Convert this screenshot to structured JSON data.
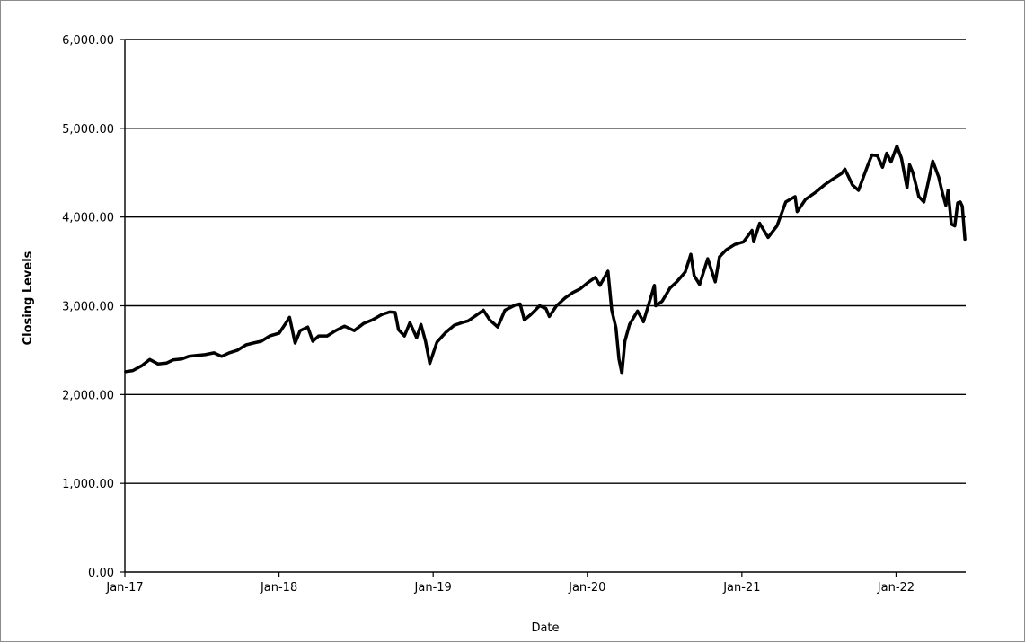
{
  "chart_data": {
    "type": "line",
    "title": "",
    "xlabel": "Date",
    "ylabel": "Closing Levels",
    "ylim": [
      0,
      6000
    ],
    "xlim": [
      "2017-01-01",
      "2022-06-15"
    ],
    "y_ticks": [
      "0.00",
      "1,000.00",
      "2,000.00",
      "3,000.00",
      "4,000.00",
      "5,000.00",
      "6,000.00"
    ],
    "x_ticks": [
      "Jan-17",
      "Jan-18",
      "Jan-19",
      "Jan-20",
      "Jan-21",
      "Jan-22"
    ],
    "grid": "horizontal",
    "legend": "none",
    "line_color": "#000000",
    "series": [
      {
        "x": [
          "2017-01-03",
          "2017-01-20",
          "2017-02-10",
          "2017-03-01",
          "2017-03-20",
          "2017-04-10",
          "2017-04-25",
          "2017-05-15",
          "2017-06-01",
          "2017-06-20",
          "2017-07-10",
          "2017-07-31",
          "2017-08-18",
          "2017-09-05",
          "2017-09-25",
          "2017-10-15",
          "2017-11-01",
          "2017-11-20",
          "2017-12-10",
          "2018-01-01",
          "2018-01-15",
          "2018-01-26",
          "2018-02-08",
          "2018-02-20",
          "2018-03-10",
          "2018-03-22",
          "2018-04-05",
          "2018-04-25",
          "2018-05-15",
          "2018-06-05",
          "2018-06-28",
          "2018-07-20",
          "2018-08-10",
          "2018-09-01",
          "2018-09-20",
          "2018-10-03",
          "2018-10-11",
          "2018-10-25",
          "2018-11-07",
          "2018-11-23",
          "2018-12-03",
          "2018-12-14",
          "2018-12-24",
          "2019-01-10",
          "2019-01-31",
          "2019-02-20",
          "2019-03-10",
          "2019-03-25",
          "2019-04-15",
          "2019-04-30",
          "2019-05-15",
          "2019-06-03",
          "2019-06-20",
          "2019-07-15",
          "2019-07-26",
          "2019-08-05",
          "2019-08-20",
          "2019-09-10",
          "2019-09-25",
          "2019-10-03",
          "2019-10-20",
          "2019-11-10",
          "2019-11-28",
          "2019-12-15",
          "2020-01-02",
          "2020-01-20",
          "2020-01-31",
          "2020-02-19",
          "2020-02-28",
          "2020-03-09",
          "2020-03-16",
          "2020-03-23",
          "2020-03-30",
          "2020-04-10",
          "2020-04-29",
          "2020-05-13",
          "2020-06-08",
          "2020-06-11",
          "2020-06-26",
          "2020-07-15",
          "2020-07-31",
          "2020-08-20",
          "2020-09-02",
          "2020-09-10",
          "2020-09-23",
          "2020-10-12",
          "2020-10-30",
          "2020-11-09",
          "2020-11-25",
          "2020-12-15",
          "2021-01-05",
          "2021-01-25",
          "2021-01-29",
          "2021-02-12",
          "2021-03-04",
          "2021-03-25",
          "2021-04-15",
          "2021-05-07",
          "2021-05-12",
          "2021-06-01",
          "2021-06-25",
          "2021-07-15",
          "2021-08-05",
          "2021-08-25",
          "2021-09-02",
          "2021-09-20",
          "2021-10-04",
          "2021-10-25",
          "2021-11-05",
          "2021-11-18",
          "2021-11-30",
          "2021-12-10",
          "2021-12-20",
          "2022-01-03",
          "2022-01-14",
          "2022-01-27",
          "2022-02-02",
          "2022-02-10",
          "2022-02-24",
          "2022-03-08",
          "2022-03-29",
          "2022-04-12",
          "2022-04-21",
          "2022-04-29",
          "2022-05-04",
          "2022-05-12",
          "2022-05-20",
          "2022-05-27",
          "2022-06-02",
          "2022-06-07",
          "2022-06-13"
        ],
        "y": [
          2258,
          2270,
          2325,
          2395,
          2345,
          2355,
          2390,
          2400,
          2430,
          2440,
          2450,
          2470,
          2430,
          2470,
          2500,
          2560,
          2580,
          2600,
          2660,
          2690,
          2790,
          2870,
          2580,
          2720,
          2760,
          2600,
          2660,
          2660,
          2720,
          2770,
          2720,
          2800,
          2840,
          2900,
          2930,
          2925,
          2730,
          2660,
          2810,
          2640,
          2790,
          2600,
          2350,
          2590,
          2700,
          2780,
          2810,
          2830,
          2900,
          2950,
          2840,
          2760,
          2950,
          3010,
          3020,
          2840,
          2900,
          3000,
          2970,
          2880,
          3000,
          3090,
          3150,
          3190,
          3260,
          3320,
          3230,
          3390,
          2950,
          2750,
          2400,
          2240,
          2600,
          2790,
          2940,
          2820,
          3230,
          3000,
          3050,
          3200,
          3270,
          3380,
          3580,
          3340,
          3240,
          3530,
          3270,
          3550,
          3630,
          3690,
          3720,
          3850,
          3720,
          3930,
          3770,
          3900,
          4170,
          4230,
          4060,
          4200,
          4280,
          4360,
          4430,
          4490,
          4540,
          4360,
          4300,
          4570,
          4700,
          4690,
          4560,
          4720,
          4620,
          4800,
          4660,
          4330,
          4590,
          4500,
          4230,
          4170,
          4630,
          4450,
          4270,
          4130,
          4300,
          3920,
          3900,
          4160,
          4170,
          4120,
          3750
        ]
      }
    ]
  }
}
